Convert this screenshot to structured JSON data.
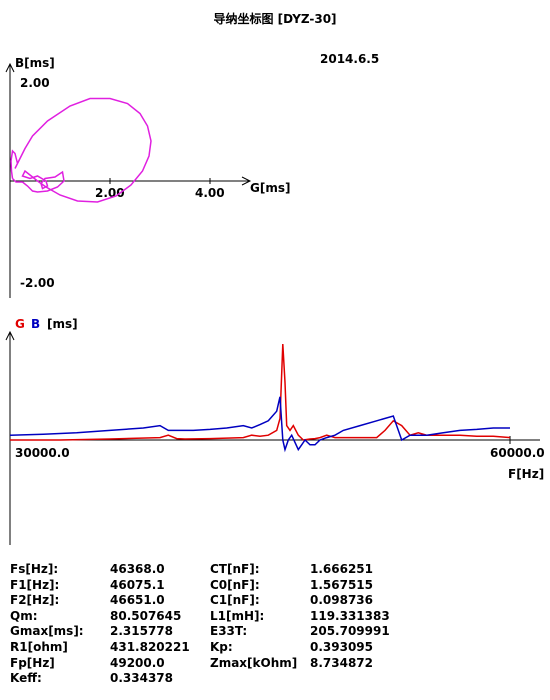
{
  "title": "导纳坐标图  [DYZ-30]",
  "date": "2014.6.5",
  "chart_data": [
    {
      "type": "line",
      "name": "admittance-circle",
      "xlabel": "G[ms]",
      "ylabel": "B[ms]",
      "xticks": [
        "2.00",
        "4.00"
      ],
      "yticks": [
        "2.00",
        "-2.00"
      ],
      "xlim": [
        0,
        4.4
      ],
      "ylim": [
        -2.0,
        2.0
      ],
      "color": "#e020e0",
      "points": [
        [
          0.05,
          0.05
        ],
        [
          0.03,
          0.2
        ],
        [
          0.02,
          0.4
        ],
        [
          0.05,
          0.6
        ],
        [
          0.1,
          0.55
        ],
        [
          0.15,
          0.35
        ],
        [
          0.1,
          0.25
        ],
        [
          0.2,
          0.45
        ],
        [
          0.3,
          0.65
        ],
        [
          0.45,
          0.9
        ],
        [
          0.75,
          1.2
        ],
        [
          1.2,
          1.5
        ],
        [
          1.6,
          1.65
        ],
        [
          2.0,
          1.65
        ],
        [
          2.35,
          1.55
        ],
        [
          2.6,
          1.35
        ],
        [
          2.75,
          1.1
        ],
        [
          2.82,
          0.8
        ],
        [
          2.78,
          0.5
        ],
        [
          2.65,
          0.2
        ],
        [
          2.42,
          -0.08
        ],
        [
          2.12,
          -0.3
        ],
        [
          1.75,
          -0.42
        ],
        [
          1.35,
          -0.4
        ],
        [
          1.0,
          -0.28
        ],
        [
          0.72,
          -0.12
        ],
        [
          0.55,
          0.0
        ],
        [
          0.4,
          0.12
        ],
        [
          0.3,
          0.2
        ],
        [
          0.25,
          0.1
        ],
        [
          0.4,
          0.05
        ],
        [
          0.55,
          0.1
        ],
        [
          0.72,
          0.0
        ],
        [
          0.75,
          -0.1
        ],
        [
          0.65,
          -0.15
        ],
        [
          0.62,
          -0.05
        ],
        [
          0.7,
          0.05
        ],
        [
          0.9,
          0.08
        ],
        [
          1.05,
          0.18
        ],
        [
          1.08,
          0.0
        ],
        [
          0.95,
          -0.12
        ],
        [
          0.75,
          -0.2
        ],
        [
          0.55,
          -0.22
        ],
        [
          0.45,
          -0.2
        ],
        [
          0.35,
          -0.1
        ],
        [
          0.25,
          -0.02
        ],
        [
          0.12,
          -0.02
        ],
        [
          0.05,
          0.05
        ]
      ]
    },
    {
      "type": "line",
      "name": "frequency-sweep",
      "legend": [
        "G",
        "B"
      ],
      "unit": "[ms]",
      "xlabel": "F[Hz]",
      "xticks": [
        "30000.0",
        "60000.0"
      ],
      "xlim": [
        30000,
        60000
      ],
      "ylim": [
        -0.5,
        2.1
      ],
      "series": [
        {
          "name": "G",
          "color": "#e00000",
          "x": [
            30000,
            33000,
            36000,
            39000,
            39500,
            40000,
            40500,
            42000,
            44000,
            44500,
            45000,
            45500,
            46000,
            46200,
            46368,
            46500,
            46600,
            46800,
            47000,
            47300,
            47600,
            48000,
            48300,
            48600,
            49000,
            49500,
            50000,
            51000,
            52000,
            52500,
            53000,
            53500,
            54000,
            54500,
            55000,
            56000,
            57000,
            58000,
            59000,
            60000
          ],
          "y": [
            0.0,
            0.0,
            0.02,
            0.05,
            0.1,
            0.03,
            0.02,
            0.03,
            0.05,
            0.1,
            0.08,
            0.1,
            0.2,
            0.45,
            2.0,
            1.2,
            0.3,
            0.2,
            0.3,
            0.1,
            0.0,
            0.02,
            0.03,
            0.05,
            0.1,
            0.05,
            0.05,
            0.05,
            0.05,
            0.2,
            0.4,
            0.3,
            0.1,
            0.15,
            0.1,
            0.1,
            0.1,
            0.08,
            0.08,
            0.05
          ]
        },
        {
          "name": "B",
          "color": "#0000c0",
          "x": [
            30000,
            32000,
            34000,
            36000,
            38000,
            39000,
            39500,
            40000,
            41000,
            42000,
            43000,
            44000,
            44500,
            45000,
            45500,
            46000,
            46200,
            46368,
            46500,
            46700,
            46900,
            47100,
            47300,
            47500,
            47700,
            48000,
            48300,
            48600,
            49000,
            49500,
            50000,
            51000,
            52000,
            53000,
            53500,
            54000,
            55000,
            56000,
            57000,
            58000,
            59000,
            60000
          ],
          "y": [
            0.1,
            0.12,
            0.15,
            0.2,
            0.25,
            0.3,
            0.2,
            0.2,
            0.2,
            0.22,
            0.25,
            0.3,
            0.25,
            0.32,
            0.4,
            0.6,
            0.9,
            0.0,
            -0.2,
            0.0,
            0.1,
            -0.05,
            -0.2,
            -0.1,
            0.0,
            -0.1,
            -0.1,
            0.0,
            0.05,
            0.1,
            0.2,
            0.3,
            0.4,
            0.5,
            0.0,
            0.1,
            0.1,
            0.15,
            0.2,
            0.22,
            0.25,
            0.25
          ]
        }
      ]
    }
  ],
  "params": [
    {
      "l1": "Fs[Hz]:",
      "v1": "46368.0",
      "l2": "CT[nF]:",
      "v2": "1.666251"
    },
    {
      "l1": "F1[Hz]:",
      "v1": "46075.1",
      "l2": "C0[nF]:",
      "v2": "1.567515"
    },
    {
      "l1": "F2[Hz]:",
      "v1": "46651.0",
      "l2": "C1[nF]:",
      "v2": "0.098736"
    },
    {
      "l1": "Qm:",
      "v1": "80.507645",
      "l2": "L1[mH]:",
      "v2": "119.331383"
    },
    {
      "l1": "Gmax[ms]:",
      "v1": "2.315778",
      "l2": "E33T:",
      "v2": "205.709991"
    },
    {
      "l1": "R1[ohm]",
      "v1": "431.820221",
      "l2": "Kp:",
      "v2": "0.393095"
    },
    {
      "l1": "Fp[Hz]",
      "v1": "49200.0",
      "l2": "Zmax[kOhm]",
      "v2": "8.734872"
    },
    {
      "l1": "Keff:",
      "v1": "0.334378",
      "l2": "",
      "v2": ""
    }
  ]
}
